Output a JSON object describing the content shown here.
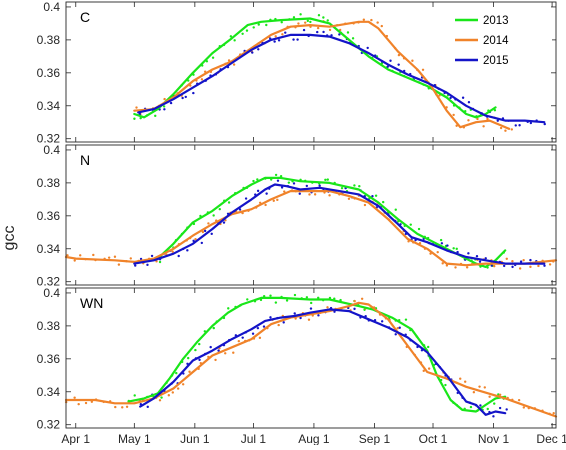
{
  "chart_data": {
    "type": "line",
    "ylabel": "gcc",
    "x_ticks": [
      "Apr 1",
      "May 1",
      "Jun 1",
      "Jul 1",
      "Aug 1",
      "Sep 1",
      "Oct 1",
      "Nov 1",
      "Dec 1"
    ],
    "x_range_days": [
      -5,
      246
    ],
    "ylim": [
      0.318,
      0.403
    ],
    "y_ticks": [
      0.32,
      0.34,
      0.36,
      0.38,
      0.4
    ],
    "y_tick_labels": [
      "0.32",
      "0.34",
      "0.36",
      "0.38",
      "0.4"
    ],
    "legend": {
      "placement": "top-right of first panel",
      "entries": [
        {
          "name": "2013",
          "color": "#19e619"
        },
        {
          "name": "2014",
          "color": "#f0832a"
        },
        {
          "name": "2015",
          "color": "#1414c8"
        }
      ]
    },
    "panels": [
      {
        "label": "C",
        "series": [
          {
            "name": "2013",
            "color": "#19e619",
            "points": [
              [
                30,
                0.335
              ],
              [
                35,
                0.333
              ],
              [
                42,
                0.338
              ],
              [
                50,
                0.347
              ],
              [
                60,
                0.36
              ],
              [
                70,
                0.372
              ],
              [
                80,
                0.381
              ],
              [
                88,
                0.389
              ],
              [
                95,
                0.391
              ],
              [
                105,
                0.392
              ],
              [
                120,
                0.393
              ],
              [
                130,
                0.39
              ],
              [
                140,
                0.38
              ],
              [
                150,
                0.37
              ],
              [
                160,
                0.362
              ],
              [
                170,
                0.357
              ],
              [
                180,
                0.352
              ],
              [
                190,
                0.345
              ],
              [
                195,
                0.34
              ],
              [
                200,
                0.335
              ],
              [
                205,
                0.333
              ],
              [
                210,
                0.335
              ],
              [
                215,
                0.339
              ]
            ]
          },
          {
            "name": "2014",
            "color": "#f0832a",
            "points": [
              [
                30,
                0.337
              ],
              [
                40,
                0.338
              ],
              [
                50,
                0.345
              ],
              [
                60,
                0.355
              ],
              [
                70,
                0.362
              ],
              [
                80,
                0.367
              ],
              [
                90,
                0.375
              ],
              [
                100,
                0.383
              ],
              [
                110,
                0.388
              ],
              [
                120,
                0.389
              ],
              [
                130,
                0.388
              ],
              [
                145,
                0.391
              ],
              [
                150,
                0.391
              ],
              [
                155,
                0.387
              ],
              [
                165,
                0.373
              ],
              [
                175,
                0.362
              ],
              [
                182,
                0.352
              ],
              [
                190,
                0.337
              ],
              [
                197,
                0.327
              ],
              [
                205,
                0.33
              ],
              [
                212,
                0.331
              ],
              [
                218,
                0.328
              ],
              [
                222,
                0.326
              ]
            ]
          },
          {
            "name": "2015",
            "color": "#1414c8",
            "points": [
              [
                32,
                0.336
              ],
              [
                40,
                0.338
              ],
              [
                50,
                0.344
              ],
              [
                60,
                0.351
              ],
              [
                70,
                0.358
              ],
              [
                80,
                0.366
              ],
              [
                90,
                0.374
              ],
              [
                100,
                0.38
              ],
              [
                110,
                0.383
              ],
              [
                120,
                0.383
              ],
              [
                130,
                0.382
              ],
              [
                140,
                0.378
              ],
              [
                150,
                0.372
              ],
              [
                160,
                0.365
              ],
              [
                170,
                0.359
              ],
              [
                180,
                0.354
              ],
              [
                190,
                0.348
              ],
              [
                200,
                0.34
              ],
              [
                210,
                0.334
              ],
              [
                220,
                0.331
              ],
              [
                230,
                0.331
              ],
              [
                240,
                0.33
              ]
            ]
          }
        ]
      },
      {
        "label": "N",
        "series": [
          {
            "name": "2013",
            "color": "#19e619",
            "points": [
              [
                42,
                0.334
              ],
              [
                50,
                0.343
              ],
              [
                60,
                0.356
              ],
              [
                70,
                0.363
              ],
              [
                80,
                0.372
              ],
              [
                90,
                0.379
              ],
              [
                97,
                0.383
              ],
              [
                105,
                0.383
              ],
              [
                115,
                0.381
              ],
              [
                130,
                0.38
              ],
              [
                145,
                0.376
              ],
              [
                155,
                0.368
              ],
              [
                165,
                0.358
              ],
              [
                175,
                0.349
              ],
              [
                185,
                0.343
              ],
              [
                195,
                0.337
              ],
              [
                205,
                0.331
              ],
              [
                210,
                0.329
              ],
              [
                215,
                0.333
              ],
              [
                220,
                0.339
              ]
            ]
          },
          {
            "name": "2014",
            "color": "#f0832a",
            "points": [
              [
                -5,
                0.335
              ],
              [
                0,
                0.334
              ],
              [
                20,
                0.333
              ],
              [
                30,
                0.332
              ],
              [
                40,
                0.334
              ],
              [
                50,
                0.34
              ],
              [
                60,
                0.348
              ],
              [
                70,
                0.355
              ],
              [
                80,
                0.361
              ],
              [
                90,
                0.364
              ],
              [
                100,
                0.37
              ],
              [
                110,
                0.375
              ],
              [
                120,
                0.375
              ],
              [
                130,
                0.375
              ],
              [
                140,
                0.372
              ],
              [
                150,
                0.368
              ],
              [
                160,
                0.358
              ],
              [
                170,
                0.346
              ],
              [
                180,
                0.34
              ],
              [
                190,
                0.331
              ],
              [
                200,
                0.33
              ],
              [
                210,
                0.331
              ],
              [
                220,
                0.331
              ],
              [
                230,
                0.331
              ],
              [
                246,
                0.333
              ]
            ]
          },
          {
            "name": "2015",
            "color": "#1414c8",
            "points": [
              [
                30,
                0.331
              ],
              [
                40,
                0.333
              ],
              [
                50,
                0.337
              ],
              [
                60,
                0.343
              ],
              [
                70,
                0.352
              ],
              [
                80,
                0.362
              ],
              [
                90,
                0.37
              ],
              [
                97,
                0.376
              ],
              [
                102,
                0.379
              ],
              [
                108,
                0.378
              ],
              [
                115,
                0.376
              ],
              [
                125,
                0.377
              ],
              [
                135,
                0.375
              ],
              [
                145,
                0.373
              ],
              [
                155,
                0.366
              ],
              [
                165,
                0.355
              ],
              [
                172,
                0.347
              ],
              [
                180,
                0.344
              ],
              [
                190,
                0.339
              ],
              [
                200,
                0.335
              ],
              [
                210,
                0.333
              ],
              [
                220,
                0.331
              ],
              [
                230,
                0.331
              ],
              [
                240,
                0.331
              ]
            ]
          }
        ]
      },
      {
        "label": "WN",
        "series": [
          {
            "name": "2013",
            "color": "#19e619",
            "points": [
              [
                27,
                0.334
              ],
              [
                35,
                0.336
              ],
              [
                42,
                0.339
              ],
              [
                48,
                0.348
              ],
              [
                55,
                0.36
              ],
              [
                62,
                0.37
              ],
              [
                70,
                0.38
              ],
              [
                78,
                0.388
              ],
              [
                85,
                0.393
              ],
              [
                95,
                0.397
              ],
              [
                105,
                0.397
              ],
              [
                120,
                0.396
              ],
              [
                130,
                0.396
              ],
              [
                145,
                0.392
              ],
              [
                152,
                0.39
              ],
              [
                162,
                0.385
              ],
              [
                172,
                0.378
              ],
              [
                180,
                0.365
              ],
              [
                185,
                0.35
              ],
              [
                192,
                0.335
              ],
              [
                198,
                0.329
              ],
              [
                205,
                0.328
              ],
              [
                210,
                0.332
              ],
              [
                215,
                0.336
              ],
              [
                220,
                0.337
              ]
            ]
          },
          {
            "name": "2014",
            "color": "#f0832a",
            "points": [
              [
                -5,
                0.335
              ],
              [
                0,
                0.335
              ],
              [
                10,
                0.335
              ],
              [
                20,
                0.333
              ],
              [
                30,
                0.333
              ],
              [
                40,
                0.336
              ],
              [
                50,
                0.342
              ],
              [
                60,
                0.352
              ],
              [
                70,
                0.362
              ],
              [
                80,
                0.367
              ],
              [
                90,
                0.372
              ],
              [
                100,
                0.381
              ],
              [
                110,
                0.385
              ],
              [
                120,
                0.387
              ],
              [
                130,
                0.389
              ],
              [
                140,
                0.392
              ],
              [
                145,
                0.394
              ],
              [
                150,
                0.393
              ],
              [
                160,
                0.384
              ],
              [
                170,
                0.368
              ],
              [
                180,
                0.352
              ],
              [
                190,
                0.348
              ],
              [
                200,
                0.343
              ],
              [
                220,
                0.336
              ],
              [
                246,
                0.325
              ]
            ]
          },
          {
            "name": "2015",
            "color": "#1414c8",
            "points": [
              [
                33,
                0.331
              ],
              [
                40,
                0.336
              ],
              [
                50,
                0.346
              ],
              [
                60,
                0.359
              ],
              [
                70,
                0.365
              ],
              [
                80,
                0.372
              ],
              [
                90,
                0.378
              ],
              [
                97,
                0.383
              ],
              [
                105,
                0.385
              ],
              [
                112,
                0.386
              ],
              [
                120,
                0.388
              ],
              [
                130,
                0.39
              ],
              [
                140,
                0.389
              ],
              [
                150,
                0.384
              ],
              [
                160,
                0.379
              ],
              [
                170,
                0.373
              ],
              [
                180,
                0.364
              ],
              [
                190,
                0.35
              ],
              [
                195,
                0.342
              ],
              [
                200,
                0.334
              ],
              [
                205,
                0.332
              ],
              [
                210,
                0.326
              ],
              [
                215,
                0.328
              ],
              [
                220,
                0.327
              ]
            ]
          }
        ]
      }
    ]
  }
}
